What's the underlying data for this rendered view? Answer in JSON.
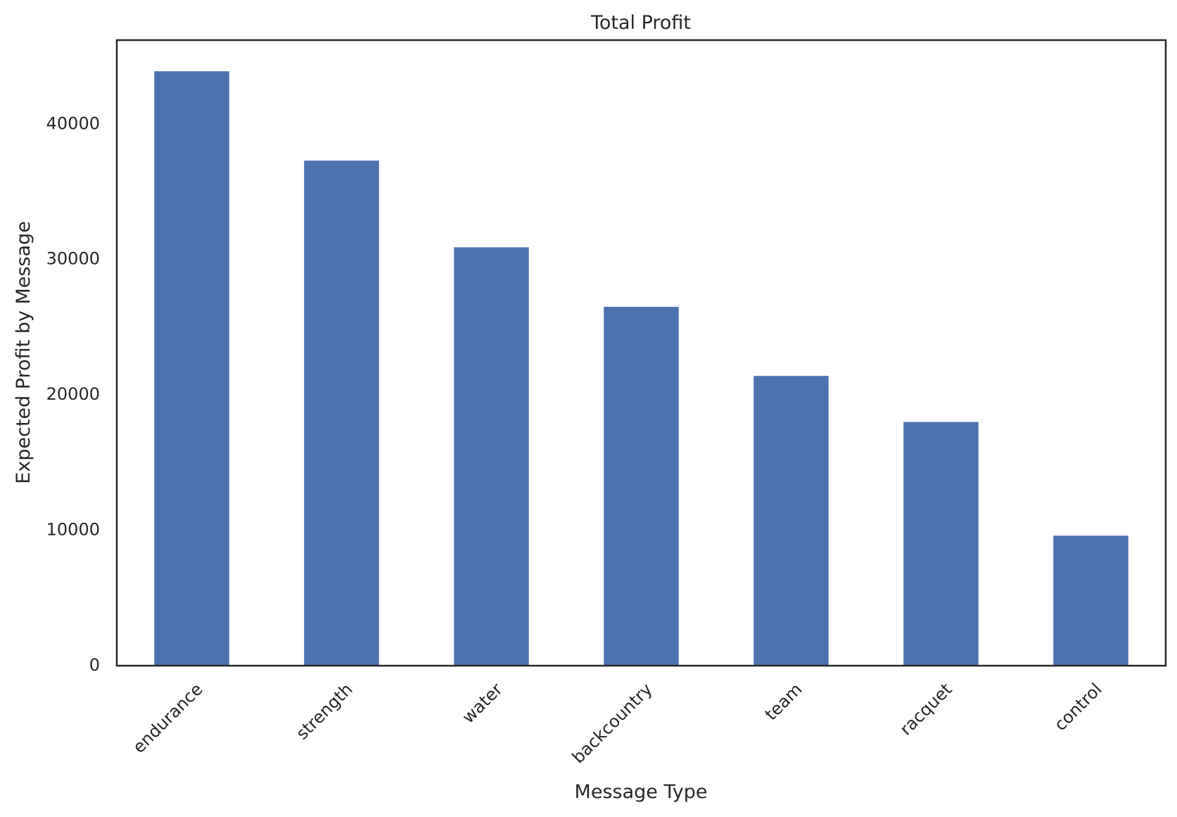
{
  "chart_data": {
    "type": "bar",
    "title": "Total Profit",
    "xlabel": "Message Type",
    "ylabel": "Expected Profit by Message",
    "categories": [
      "endurance",
      "strength",
      "water",
      "backcountry",
      "team",
      "racquet",
      "control"
    ],
    "values": [
      43900,
      37300,
      30900,
      26500,
      21400,
      18000,
      9600
    ],
    "ylim": [
      0,
      46200
    ],
    "yticks": [
      0,
      10000,
      20000,
      30000,
      40000
    ],
    "ytick_labels": [
      "0",
      "10000",
      "20000",
      "30000",
      "40000"
    ],
    "bar_color": "#4c72b0",
    "grid": false,
    "legend": null
  }
}
